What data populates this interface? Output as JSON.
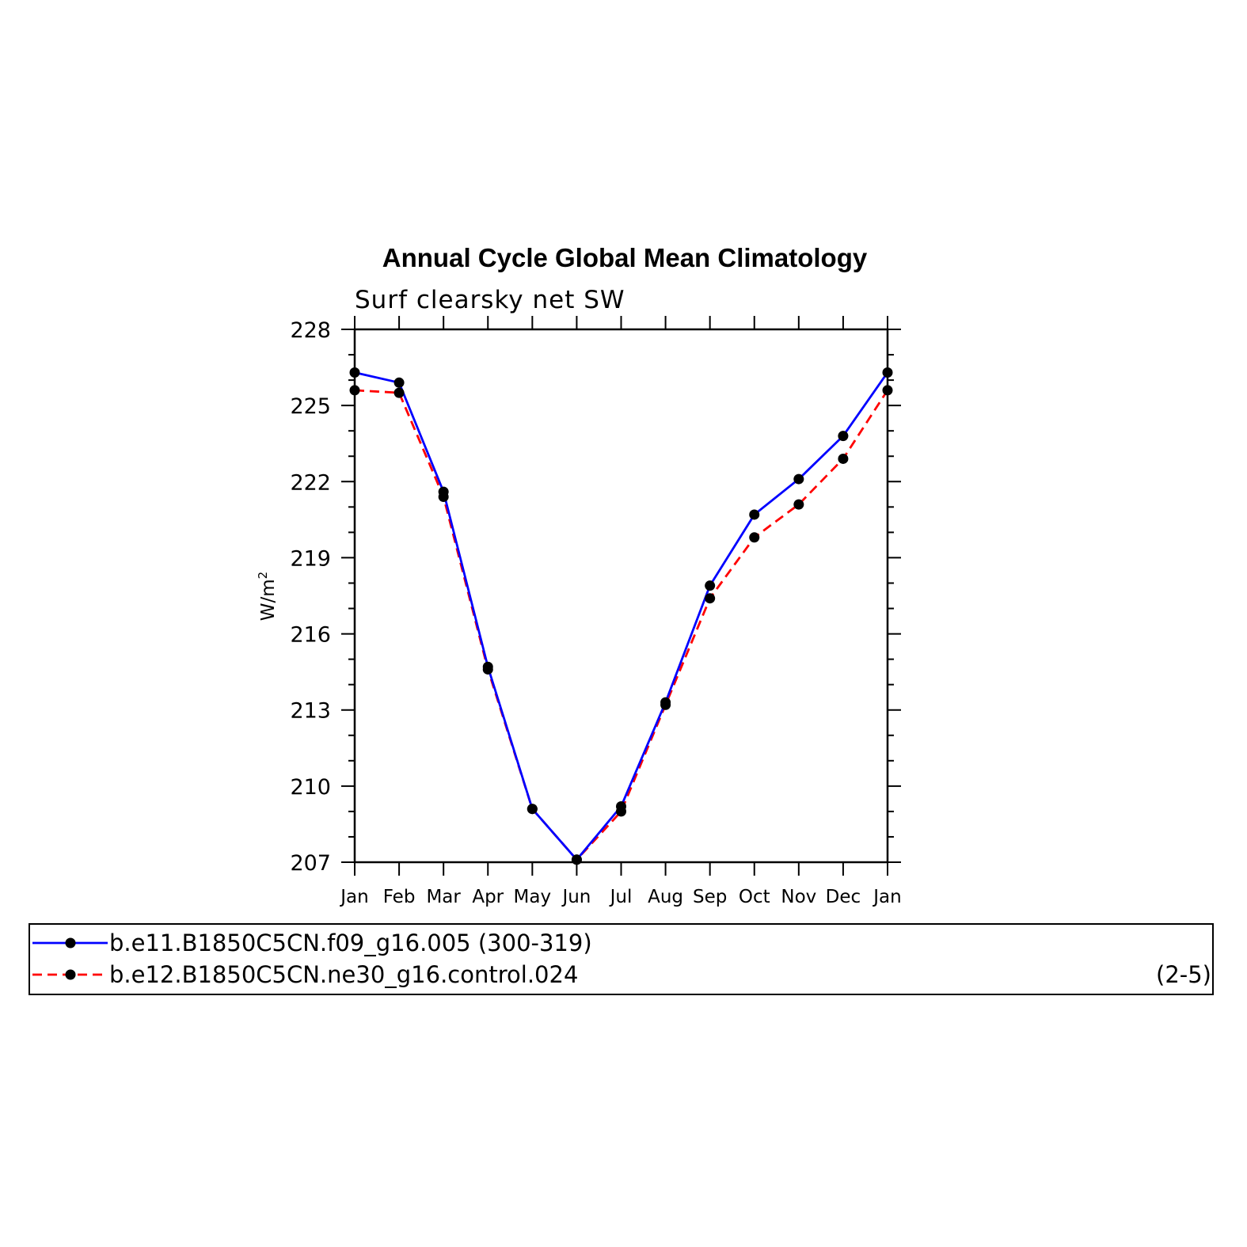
{
  "chart_data": {
    "type": "line",
    "title": "Annual Cycle Global Mean Climatology",
    "subtitle": "Surf clearsky net SW",
    "ylabel": "W/m",
    "ylabel_superscript": "2",
    "ylim": [
      207,
      228
    ],
    "yticks": [
      207,
      210,
      213,
      216,
      219,
      222,
      225,
      228
    ],
    "categories": [
      "Jan",
      "Feb",
      "Mar",
      "Apr",
      "May",
      "Jun",
      "Jul",
      "Aug",
      "Sep",
      "Oct",
      "Nov",
      "Dec",
      "Jan"
    ],
    "series": [
      {
        "name": "b.e11.B1850C5CN.f09_g16.005 (300-319)",
        "color": "#0000ff",
        "dash": "solid",
        "values": [
          226.3,
          225.9,
          221.6,
          214.7,
          209.1,
          207.1,
          209.2,
          213.3,
          217.9,
          220.7,
          222.1,
          223.8,
          226.3
        ]
      },
      {
        "name": "b.e12.B1850C5CN.ne30_g16.control.024",
        "color": "#ff0000",
        "dash": "dashed",
        "values": [
          225.6,
          225.5,
          221.4,
          214.6,
          209.1,
          207.1,
          209.0,
          213.2,
          217.4,
          219.8,
          221.1,
          222.9,
          225.6
        ]
      }
    ],
    "legend_note": "(2-5)",
    "legend_placement": "bottom"
  }
}
